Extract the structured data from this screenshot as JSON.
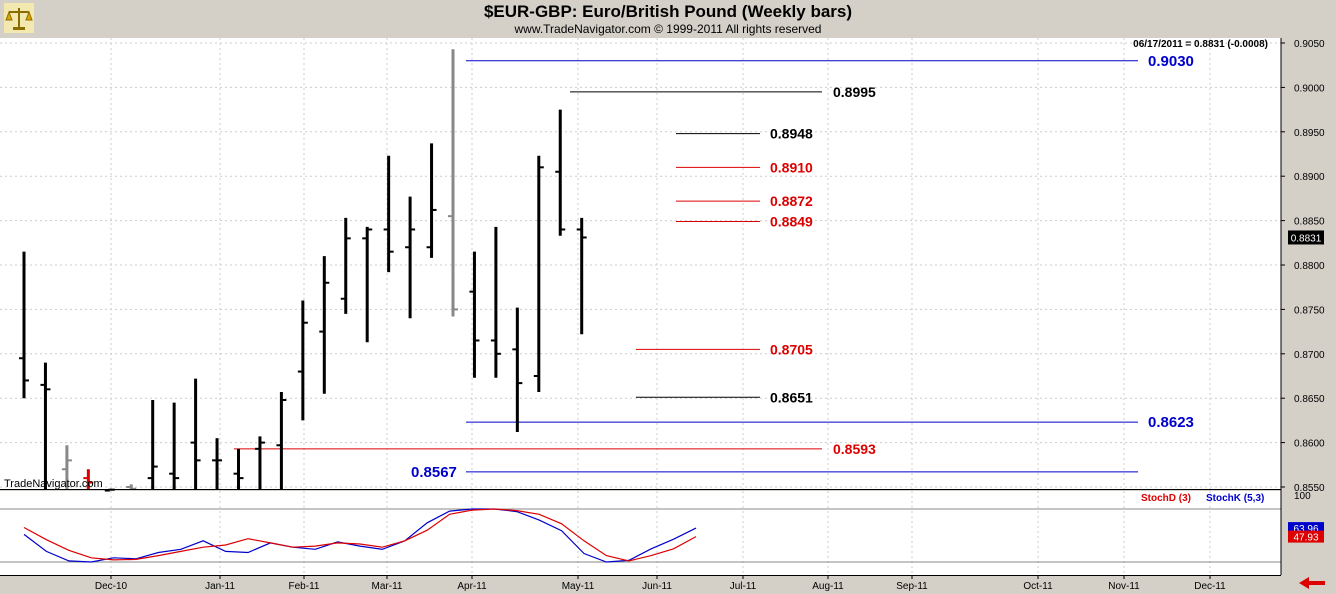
{
  "header": {
    "title": "$EUR-GBP:  Euro/British Pound  (Weekly bars)",
    "subtitle": "www.TradeNavigator.com © 1999-2011 All rights reserved"
  },
  "icons": {
    "logo": "scales-logo-icon",
    "nav": "back-arrow-icon"
  },
  "chart_data": [
    {
      "type": "ohlc",
      "ylim": [
        0.8545,
        0.906
      ],
      "y_ticks": [
        "0.9050",
        "0.9000",
        "0.8950",
        "0.8900",
        "0.8850",
        "0.8800",
        "0.8750",
        "0.8700",
        "0.8650",
        "0.8600",
        "0.8550"
      ],
      "x_tick_labels": [
        "Dec-10",
        "Jan-11",
        "Feb-11",
        "Mar-11",
        "Apr-11",
        "May-11",
        "Jun-11",
        "Jul-11",
        "Aug-11",
        "Sep-11",
        "Oct-11",
        "Nov-11",
        "Dec-11"
      ],
      "readout": "06/17/2011 = 0.8831 (-0.0008)",
      "last_price": "0.8831",
      "watermark": "TradeNavigator.com",
      "bars": [
        {
          "h": 0.8815,
          "l": 0.865,
          "o": 0.8695,
          "c": 0.867,
          "color": "#000000"
        },
        {
          "h": 0.869,
          "l": 0.8545,
          "o": 0.8665,
          "c": 0.866,
          "color": "#000000"
        },
        {
          "h": 0.8597,
          "l": 0.8545,
          "o": 0.857,
          "c": 0.858,
          "color": "#888888"
        },
        {
          "h": 0.857,
          "l": 0.8545,
          "o": 0.856,
          "c": 0.8555,
          "color": "#dd0000"
        },
        {
          "h": 0.8548,
          "l": 0.8545,
          "o": 0.8546,
          "c": 0.8547,
          "color": "#000000"
        },
        {
          "h": 0.8553,
          "l": 0.8545,
          "o": 0.855,
          "c": 0.8548,
          "color": "#888888"
        },
        {
          "h": 0.8648,
          "l": 0.8545,
          "o": 0.856,
          "c": 0.8573,
          "color": "#000000"
        },
        {
          "h": 0.8645,
          "l": 0.8545,
          "o": 0.8565,
          "c": 0.856,
          "color": "#000000"
        },
        {
          "h": 0.8672,
          "l": 0.8545,
          "o": 0.86,
          "c": 0.858,
          "color": "#000000"
        },
        {
          "h": 0.8605,
          "l": 0.8545,
          "o": 0.858,
          "c": 0.858,
          "color": "#000000"
        },
        {
          "h": 0.8593,
          "l": 0.8545,
          "o": 0.8565,
          "c": 0.856,
          "color": "#000000"
        },
        {
          "h": 0.8607,
          "l": 0.8545,
          "o": 0.8593,
          "c": 0.86,
          "color": "#000000"
        },
        {
          "h": 0.8657,
          "l": 0.8545,
          "o": 0.8597,
          "c": 0.8648,
          "color": "#000000"
        },
        {
          "h": 0.876,
          "l": 0.8625,
          "o": 0.868,
          "c": 0.8735,
          "color": "#000000"
        },
        {
          "h": 0.881,
          "l": 0.8655,
          "o": 0.8725,
          "c": 0.878,
          "color": "#000000"
        },
        {
          "h": 0.8853,
          "l": 0.8745,
          "o": 0.8762,
          "c": 0.883,
          "color": "#000000"
        },
        {
          "h": 0.8843,
          "l": 0.8713,
          "o": 0.883,
          "c": 0.884,
          "color": "#000000"
        },
        {
          "h": 0.8923,
          "l": 0.8792,
          "o": 0.884,
          "c": 0.8815,
          "color": "#000000"
        },
        {
          "h": 0.8877,
          "l": 0.874,
          "o": 0.882,
          "c": 0.884,
          "color": "#000000"
        },
        {
          "h": 0.8937,
          "l": 0.8808,
          "o": 0.882,
          "c": 0.8862,
          "color": "#000000"
        },
        {
          "h": 0.9043,
          "l": 0.8742,
          "o": 0.8855,
          "c": 0.875,
          "color": "#888888"
        },
        {
          "h": 0.8815,
          "l": 0.8673,
          "o": 0.877,
          "c": 0.8715,
          "color": "#000000"
        },
        {
          "h": 0.8843,
          "l": 0.8673,
          "o": 0.8715,
          "c": 0.87,
          "color": "#000000"
        },
        {
          "h": 0.8752,
          "l": 0.8612,
          "o": 0.8705,
          "c": 0.8667,
          "color": "#000000"
        },
        {
          "h": 0.8923,
          "l": 0.8657,
          "o": 0.8675,
          "c": 0.891,
          "color": "#000000"
        },
        {
          "h": 0.8975,
          "l": 0.8833,
          "o": 0.8905,
          "c": 0.884,
          "color": "#000000"
        },
        {
          "h": 0.8853,
          "l": 0.8722,
          "o": 0.884,
          "c": 0.8831,
          "color": "#000000"
        }
      ],
      "levels": [
        {
          "value": 0.903,
          "label": "0.9030",
          "color": "#0000cc"
        },
        {
          "value": 0.8995,
          "label": "0.8995",
          "color": "#000000"
        },
        {
          "value": 0.8948,
          "label": "0.8948",
          "color": "#000000"
        },
        {
          "value": 0.891,
          "label": "0.8910",
          "color": "#dd0000"
        },
        {
          "value": 0.8872,
          "label": "0.8872",
          "color": "#dd0000"
        },
        {
          "value": 0.8849,
          "label": "0.8849",
          "color": "#dd0000"
        },
        {
          "value": 0.8705,
          "label": "0.8705",
          "color": "#dd0000"
        },
        {
          "value": 0.8651,
          "label": "0.8651",
          "color": "#000000"
        },
        {
          "value": 0.8623,
          "label": "0.8623",
          "color": "#0000cc"
        },
        {
          "value": 0.8593,
          "label": "0.8593",
          "color": "#dd0000"
        },
        {
          "value": 0.8567,
          "label": "0.8567",
          "color": "#0000cc"
        }
      ]
    },
    {
      "type": "line",
      "ylim": [
        0,
        100
      ],
      "top_label": "100",
      "legend": [
        {
          "name": "StochD (3)",
          "color": "#dd0000"
        },
        {
          "name": "StochK (5,3)",
          "color": "#0000cc"
        }
      ],
      "last_values": [
        {
          "label": "63.96",
          "color": "#0000cc"
        },
        {
          "label": "47.93",
          "color": "#dd0000"
        }
      ],
      "series": [
        {
          "name": "StochK (5,3)",
          "color": "#0000cc",
          "values": [
            52,
            20,
            2,
            0,
            8,
            6,
            18,
            24,
            40,
            20,
            18,
            36,
            28,
            24,
            38,
            30,
            24,
            40,
            74,
            96,
            100,
            100,
            95,
            79,
            59,
            16,
            0,
            3,
            25,
            43,
            64
          ]
        },
        {
          "name": "StochD (3)",
          "color": "#dd0000",
          "values": [
            65,
            42,
            22,
            8,
            4,
            5,
            12,
            20,
            28,
            32,
            44,
            36,
            28,
            30,
            36,
            34,
            28,
            40,
            60,
            90,
            98,
            100,
            97,
            90,
            72,
            40,
            12,
            2,
            12,
            25,
            48
          ]
        }
      ]
    }
  ]
}
